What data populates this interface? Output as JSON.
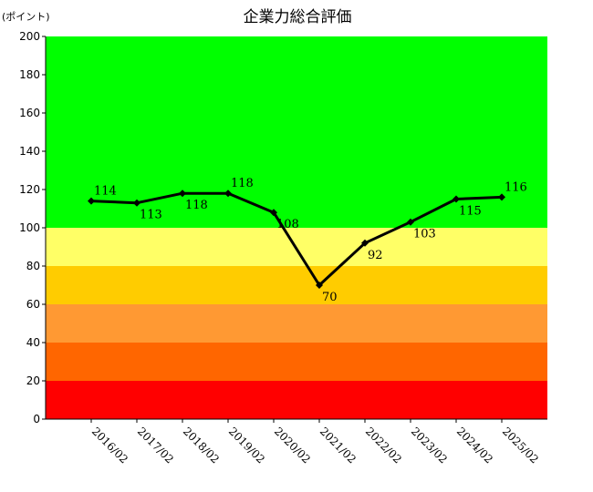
{
  "chart_data": {
    "type": "line",
    "title": "企業力総合評価",
    "ylabel": "(ポイント)",
    "xlabel": "",
    "ylim": [
      0,
      200
    ],
    "yticks": [
      0,
      20,
      40,
      60,
      80,
      100,
      120,
      140,
      160,
      180,
      200
    ],
    "grid": false,
    "legend": "none",
    "categories": [
      "2016/02",
      "2017/02",
      "2018/02",
      "2019/02",
      "2020/02",
      "2021/02",
      "2022/02",
      "2023/02",
      "2024/02",
      "2025/02"
    ],
    "series": [
      {
        "values": [
          114,
          113,
          118,
          118,
          108,
          70,
          92,
          103,
          115,
          116
        ],
        "color": "#000000"
      }
    ],
    "background_bands": [
      {
        "from": 0,
        "to": 20,
        "color": "#ff0000"
      },
      {
        "from": 20,
        "to": 40,
        "color": "#ff6600"
      },
      {
        "from": 40,
        "to": 60,
        "color": "#ff9933"
      },
      {
        "from": 60,
        "to": 80,
        "color": "#ffcc00"
      },
      {
        "from": 80,
        "to": 100,
        "color": "#ffff66"
      },
      {
        "from": 100,
        "to": 200,
        "color": "#00ff00"
      }
    ]
  }
}
